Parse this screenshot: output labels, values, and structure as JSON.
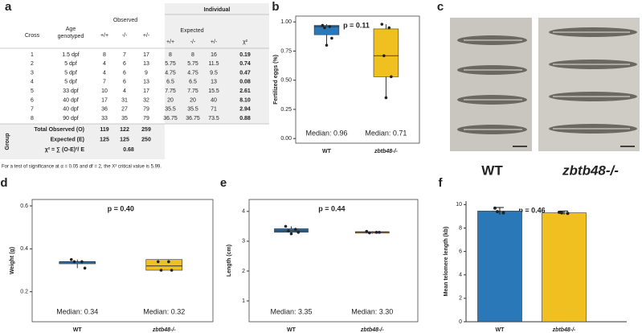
{
  "table": {
    "panel": "a",
    "group_header": "Individual",
    "cross_header": "Cross",
    "age_header": [
      "Age",
      "genotyped"
    ],
    "observed_header": "Observed",
    "expected_header": "Expected",
    "chi_header": "χ²",
    "subheader": [
      "+/+",
      "-/-",
      "+/-",
      "+/+",
      "-/-",
      "+/-"
    ],
    "rows": [
      [
        "1",
        "1.5 dpf",
        "8",
        "7",
        "17",
        "8",
        "8",
        "16",
        "0.19"
      ],
      [
        "2",
        "5 dpf",
        "4",
        "6",
        "13",
        "5.75",
        "5.75",
        "11.5",
        "0.74"
      ],
      [
        "3",
        "5 dpf",
        "4",
        "6",
        "9",
        "4.75",
        "4.75",
        "9.5",
        "0.47"
      ],
      [
        "4",
        "5 dpf",
        "7",
        "6",
        "13",
        "6.5",
        "6.5",
        "13",
        "0.08"
      ],
      [
        "5",
        "33 dpf",
        "10",
        "4",
        "17",
        "7.75",
        "7.75",
        "15.5",
        "2.61"
      ],
      [
        "6",
        "40 dpf",
        "17",
        "31",
        "32",
        "20",
        "20",
        "40",
        "8.10"
      ],
      [
        "7",
        "40 dpf",
        "36",
        "27",
        "79",
        "35.5",
        "35.5",
        "71",
        "2.94"
      ],
      [
        "8",
        "90 dpf",
        "33",
        "35",
        "79",
        "36.75",
        "36.75",
        "73.5",
        "0.88"
      ]
    ],
    "group_label": "Group",
    "summary": [
      [
        "Total Observed (O)",
        "119",
        "122",
        "259"
      ],
      [
        "Expected (E)",
        "125",
        "125",
        "250"
      ],
      [
        "χ² = ∑ (O-E)²/ E",
        "0.68"
      ]
    ],
    "footnote": "For a test of significance at α = 0.05 and df = 2, the Χ² critical value is 5.99."
  },
  "photo": {
    "panel": "c",
    "labels": [
      "WT",
      "zbtb48-/-"
    ]
  },
  "chart_data": [
    {
      "type": "box",
      "panel": "b",
      "ylabel": "Fertilized eggs (%)",
      "annotation": "p = 0.11",
      "categories": [
        "WT",
        "zbtb48-/-"
      ],
      "ylim": [
        -0.04,
        1.05
      ],
      "yticks": [
        {
          "value": 0,
          "label": "0.00"
        },
        {
          "value": 0.25,
          "label": "0.25"
        },
        {
          "value": 0.5,
          "label": "0.50"
        },
        {
          "value": 0.75,
          "label": "0.75"
        },
        {
          "value": 1,
          "label": "1.00"
        }
      ],
      "boxes": [
        {
          "color": "#2a78b8",
          "min": 0.8,
          "q1": 0.89,
          "median": 0.96,
          "q3": 0.97,
          "max": 0.98,
          "points": [
            0.97,
            0.96,
            0.95,
            0.86,
            0.8
          ]
        },
        {
          "color": "#f0c020",
          "min": 0.35,
          "q1": 0.53,
          "median": 0.71,
          "q3": 0.94,
          "max": 0.98,
          "points": [
            0.98,
            0.95,
            0.71,
            0.53,
            0.35
          ]
        }
      ],
      "median_labels": [
        "Median: 0.96",
        "Median: 0.71"
      ]
    },
    {
      "type": "box",
      "panel": "d",
      "ylabel": "Weight (g)",
      "annotation": "p = 0.40",
      "categories": [
        "WT",
        "zbtb48-/-"
      ],
      "ylim": [
        0.06,
        0.63
      ],
      "yticks": [
        {
          "value": 0.2,
          "label": "0.2"
        },
        {
          "value": 0.4,
          "label": "0.4"
        },
        {
          "value": 0.6,
          "label": "0.6"
        }
      ],
      "boxes": [
        {
          "color": "#2a78b8",
          "min": 0.31,
          "q1": 0.33,
          "median": 0.34,
          "q3": 0.34,
          "max": 0.35,
          "points": [
            0.35,
            0.34,
            0.34,
            0.31
          ]
        },
        {
          "color": "#f0c020",
          "min": 0.3,
          "q1": 0.3,
          "median": 0.32,
          "q3": 0.35,
          "max": 0.35,
          "points": [
            0.34,
            0.34,
            0.3,
            0.3
          ]
        }
      ],
      "median_labels": [
        "Median: 0.34",
        "Median: 0.32"
      ]
    },
    {
      "type": "box",
      "panel": "e",
      "ylabel": "Length (cm)",
      "annotation": "p = 0.44",
      "categories": [
        "WT",
        "zbtb48-/-"
      ],
      "ylim": [
        0.3,
        4.4
      ],
      "yticks": [
        1,
        2,
        3,
        4
      ],
      "boxes": [
        {
          "color": "#2a78b8",
          "min": 3.25,
          "q1": 3.3,
          "median": 3.35,
          "q3": 3.42,
          "max": 3.5,
          "points": [
            3.5,
            3.4,
            3.35,
            3.3,
            3.25
          ]
        },
        {
          "color": "#f0c020",
          "min": 3.25,
          "q1": 3.27,
          "median": 3.3,
          "q3": 3.32,
          "max": 3.33,
          "points": [
            3.33,
            3.3,
            3.28,
            3.3
          ]
        }
      ],
      "median_labels": [
        "Median: 3.35",
        "Median: 3.30"
      ]
    },
    {
      "type": "bar",
      "panel": "f",
      "ylabel": "Mean telomere length (kb)",
      "annotation": "p = 0.46",
      "categories": [
        "WT",
        "zbtb48-/-"
      ],
      "ylim": [
        0,
        10.3
      ],
      "yticks": [
        0,
        2,
        4,
        6,
        8,
        10
      ],
      "values": [
        9.45,
        9.3
      ],
      "errors": [
        0.3,
        0.15
      ],
      "colors": [
        "#2a78b8",
        "#f0c020"
      ],
      "points": [
        [
          9.7,
          9.3,
          9.4
        ],
        [
          9.35,
          9.25,
          9.3
        ]
      ]
    }
  ]
}
